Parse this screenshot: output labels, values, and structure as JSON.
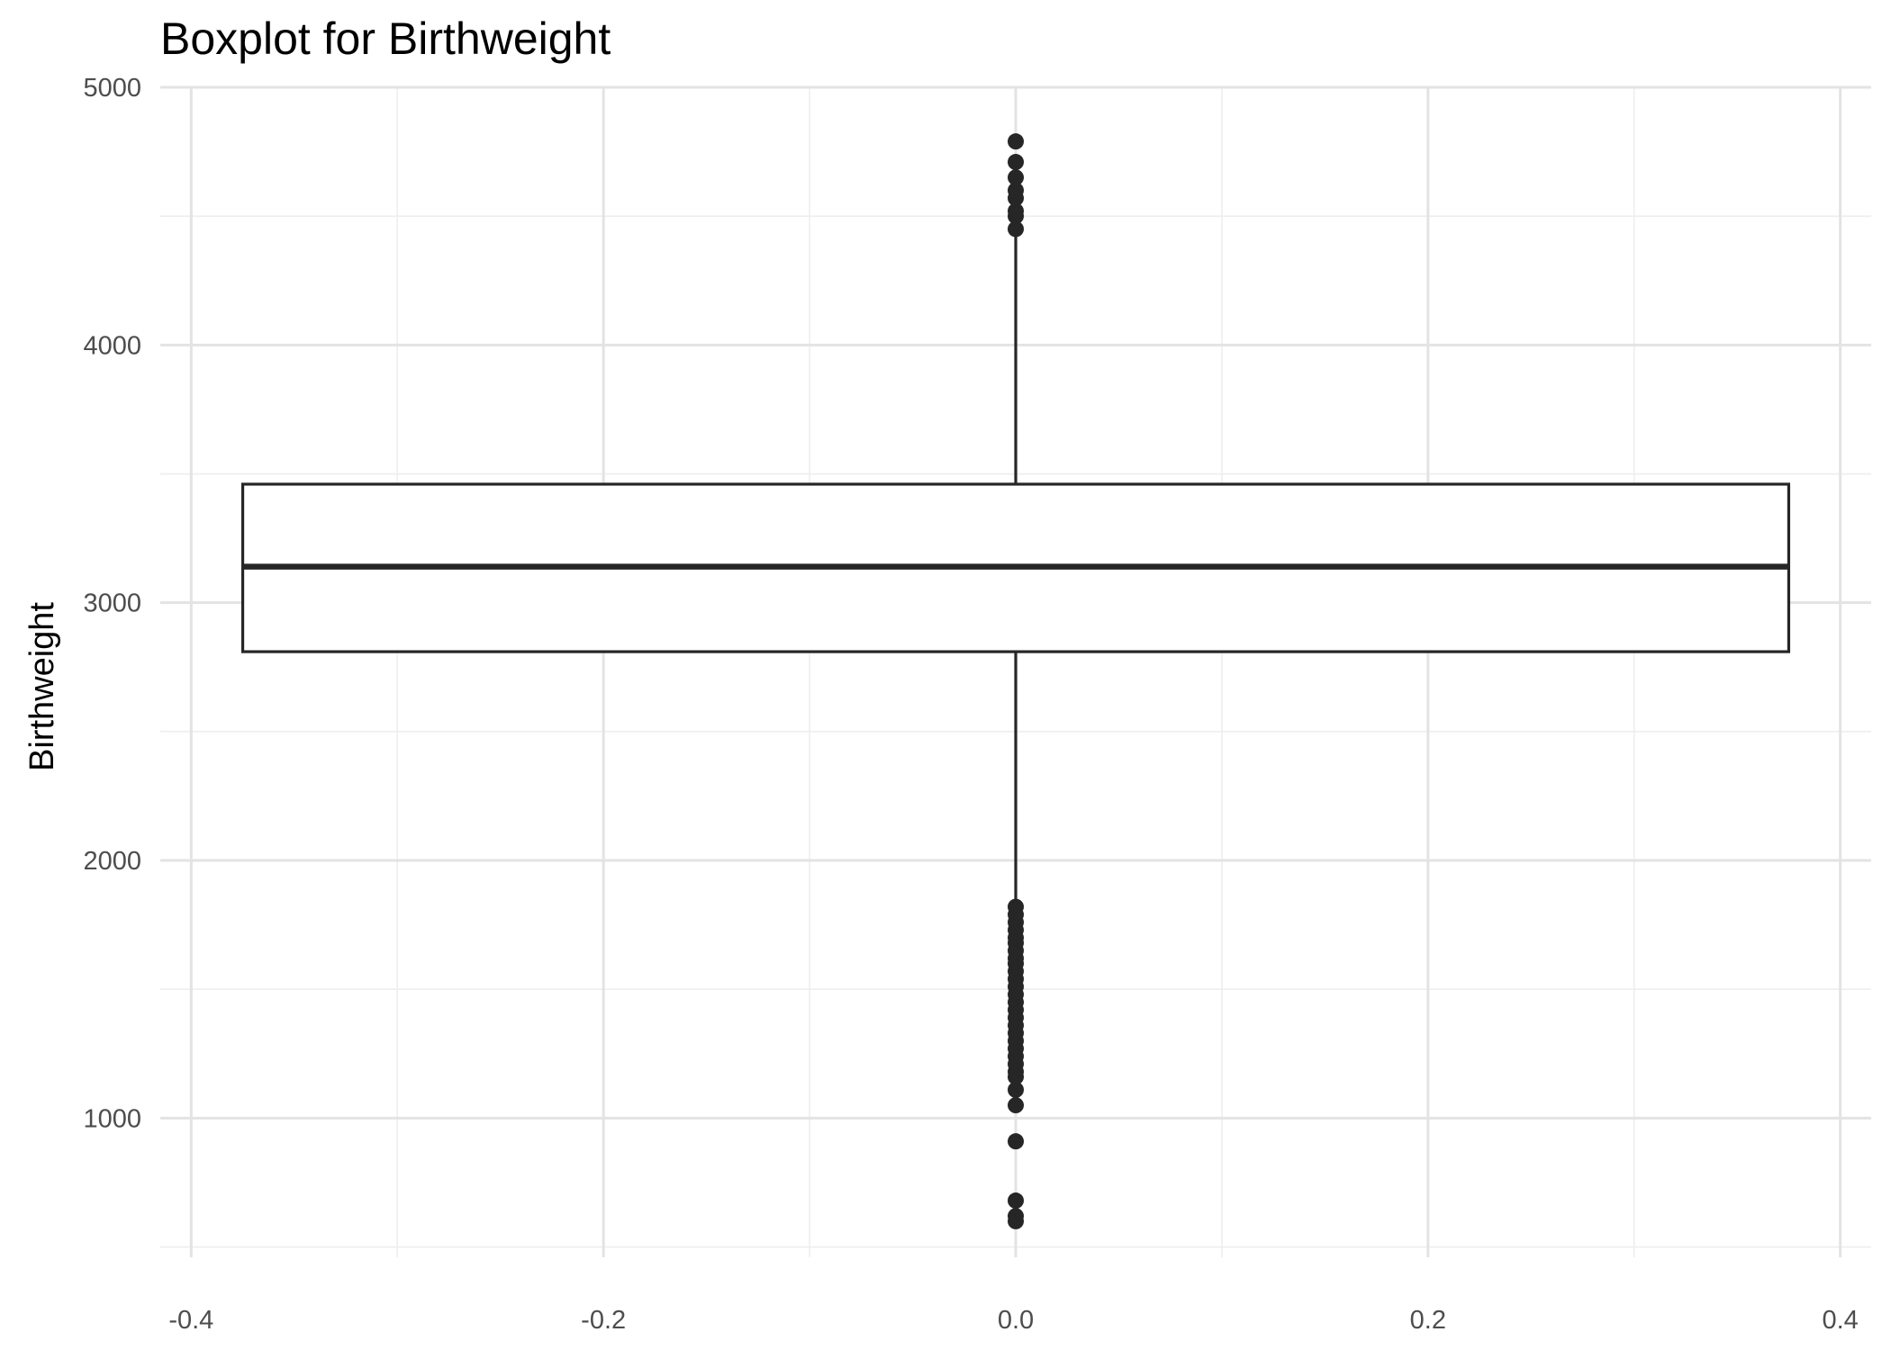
{
  "chart_data": {
    "type": "boxplot",
    "title": "Boxplot for Birthweight",
    "xlabel": "",
    "ylabel": "Birthweight",
    "xlim": [
      -0.415,
      0.415
    ],
    "ylim": [
      460,
      5000
    ],
    "x_ticks": [
      -0.4,
      -0.2,
      0.0,
      0.2,
      0.4
    ],
    "x_tick_labels": [
      "-0.4",
      "-0.2",
      "0.0",
      "0.2",
      "0.4"
    ],
    "x_minor_ticks": [
      -0.3,
      -0.1,
      0.1,
      0.3
    ],
    "y_ticks": [
      1000,
      2000,
      3000,
      4000,
      5000
    ],
    "y_tick_labels": [
      "1000",
      "2000",
      "3000",
      "4000",
      "5000"
    ],
    "y_minor_ticks": [
      500,
      1500,
      2500,
      3500,
      4500
    ],
    "grid": true,
    "legend": "none",
    "box": {
      "x_center": 0.0,
      "x_min": -0.375,
      "x_max": 0.375,
      "q1": 2810,
      "median": 3140,
      "q3": 3460,
      "whisker_low": 1820,
      "whisker_high": 4450
    },
    "outliers": [
      4790,
      4710,
      4650,
      4600,
      4570,
      4520,
      4500,
      4450,
      1820,
      1790,
      1760,
      1730,
      1700,
      1680,
      1650,
      1620,
      1600,
      1570,
      1540,
      1510,
      1480,
      1450,
      1420,
      1390,
      1360,
      1330,
      1300,
      1270,
      1240,
      1210,
      1180,
      1160,
      1110,
      1050,
      910,
      680,
      620,
      600
    ],
    "colors": {
      "box_outline": "#262626",
      "grid": "#e3e3e3",
      "background": "#ffffff"
    }
  }
}
